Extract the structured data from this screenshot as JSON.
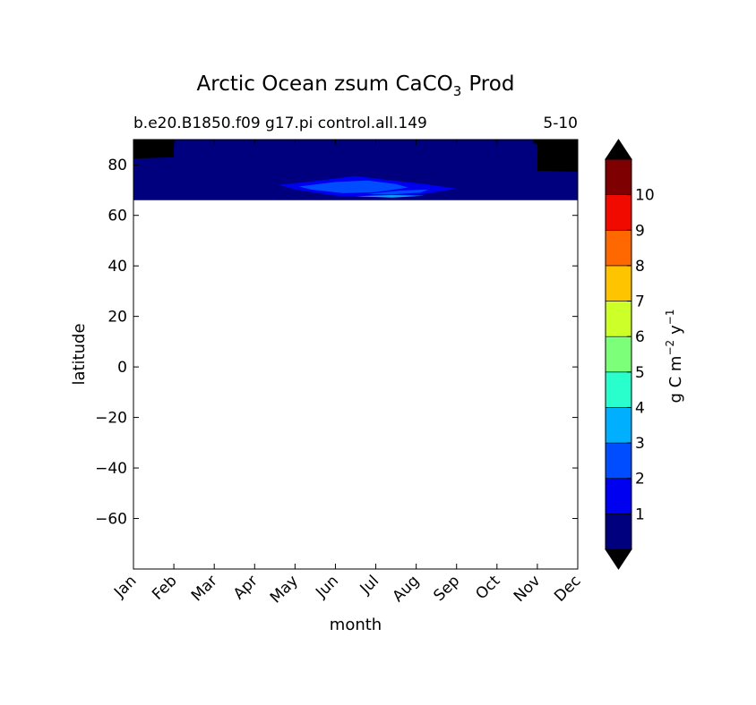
{
  "chart_data": {
    "type": "heatmap",
    "title": "Arctic Ocean zsum CaCO",
    "title_subscript": "3",
    "title_suffix": "Prod",
    "subtitle_left": "b.e20.B1850.f09 g17.pi control.all.149",
    "subtitle_right": "5-10",
    "xlabel": "month",
    "ylabel": "latitude",
    "x_tick_labels": [
      "Jan",
      "Feb",
      "Mar",
      "Apr",
      "May",
      "Jun",
      "Jul",
      "Aug",
      "Sep",
      "Oct",
      "Nov",
      "Dec"
    ],
    "xlim": [
      1,
      12
    ],
    "ylim": [
      -80,
      90
    ],
    "y_ticks": [
      -60,
      -40,
      -20,
      0,
      20,
      40,
      60,
      80
    ],
    "y_tick_labels": [
      "−60",
      "−40",
      "−20",
      "0",
      "20",
      "40",
      "60",
      "80"
    ],
    "data_lat_range": [
      66,
      90
    ],
    "colorbar": {
      "label": "g C m",
      "label_sup1": "−2",
      "label_mid": "y",
      "label_sup2": "−1",
      "levels": [
        0,
        1,
        2,
        3,
        4,
        5,
        6,
        7,
        8,
        9,
        10,
        11
      ],
      "tick_values": [
        1,
        2,
        3,
        4,
        5,
        6,
        7,
        8,
        9,
        10
      ],
      "tick_labels": [
        "1",
        "2",
        "3",
        "4",
        "5",
        "6",
        "7",
        "8",
        "9",
        "10"
      ],
      "colors": [
        "#00007f",
        "#0000f0",
        "#004cff",
        "#00b0ff",
        "#29ffcd",
        "#7cff79",
        "#cdff29",
        "#ffc400",
        "#ff6700",
        "#f00a00",
        "#7f0000"
      ],
      "under_color": "#000000",
      "over_color": "#000000",
      "extend": "both"
    },
    "fields": [
      {
        "name": "missing",
        "color": "#000000",
        "points": [
          [
            1,
            90
          ],
          [
            1,
            82.5
          ],
          [
            2,
            83
          ],
          [
            2,
            90
          ]
        ]
      },
      {
        "name": "missing",
        "color": "#000000",
        "points": [
          [
            10.9,
            90
          ],
          [
            10.9,
            88.3
          ],
          [
            12,
            88.8
          ],
          [
            12,
            90
          ]
        ]
      },
      {
        "name": "missing",
        "color": "#000000",
        "points": [
          [
            11,
            89
          ],
          [
            11,
            77.6
          ],
          [
            12,
            77.3
          ],
          [
            12,
            89
          ]
        ]
      },
      {
        "name": "level-1",
        "color": "#0000f0",
        "points": [
          [
            4.6,
            72
          ],
          [
            5.6,
            73.8
          ],
          [
            6.5,
            75.6
          ],
          [
            7.3,
            74
          ],
          [
            8.2,
            72.4
          ],
          [
            9,
            70.6
          ],
          [
            8,
            68
          ],
          [
            7,
            67.2
          ],
          [
            6,
            67.8
          ],
          [
            5,
            70.3
          ]
        ]
      },
      {
        "name": "level-2",
        "color": "#004cff",
        "points": [
          [
            5.1,
            71.4
          ],
          [
            6,
            73.2
          ],
          [
            6.8,
            73.8
          ],
          [
            7.5,
            72.4
          ],
          [
            7.8,
            71
          ],
          [
            7,
            69.2
          ],
          [
            6.2,
            68.8
          ],
          [
            5.4,
            70.2
          ]
        ]
      },
      {
        "name": "level-2",
        "color": "#004cff",
        "points": [
          [
            6.8,
            68.5
          ],
          [
            7.6,
            69.8
          ],
          [
            8.3,
            70.2
          ],
          [
            8.1,
            69
          ],
          [
            7.4,
            68.3
          ]
        ]
      },
      {
        "name": "level-3",
        "color": "#00b0ff",
        "points": [
          [
            6.5,
            67.6
          ],
          [
            7.4,
            68
          ],
          [
            8.2,
            67.8
          ],
          [
            7.4,
            67.1
          ]
        ]
      }
    ],
    "background_value_color": "#00007f"
  }
}
